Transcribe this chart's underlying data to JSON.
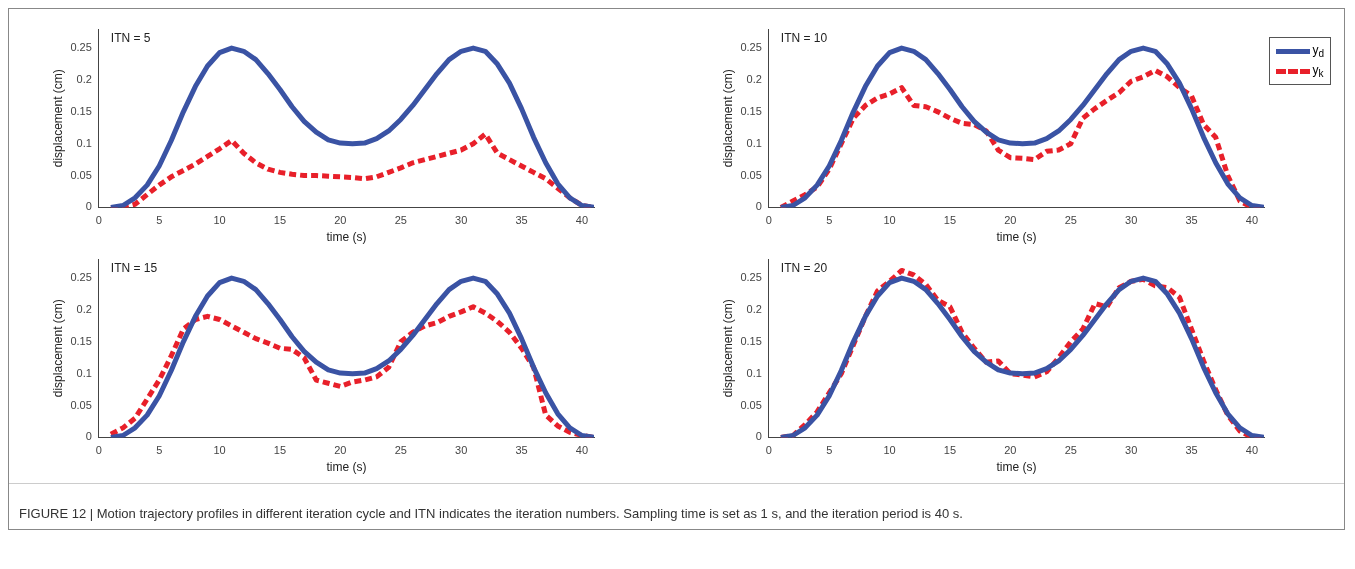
{
  "chart_data": [
    {
      "type": "line",
      "title": "ITN = 5",
      "xlabel": "time (s)",
      "ylabel": "displacement (cm)",
      "x": [
        1,
        2,
        3,
        4,
        5,
        6,
        7,
        8,
        9,
        10,
        11,
        12,
        13,
        14,
        15,
        16,
        17,
        18,
        19,
        20,
        21,
        22,
        23,
        24,
        25,
        26,
        27,
        28,
        29,
        30,
        31,
        32,
        33,
        34,
        35,
        36,
        37,
        38,
        39,
        40,
        41
      ],
      "xlim": [
        0,
        41
      ],
      "xticks": [
        0,
        5,
        10,
        15,
        20,
        25,
        30,
        35,
        40
      ],
      "ylim": [
        0,
        0.28
      ],
      "yticks": [
        0,
        0.05,
        0.1,
        0.15,
        0.2,
        0.25
      ],
      "grid": false,
      "legend": false,
      "marker": "none",
      "series": [
        {
          "color": "#3a53a4",
          "line_style": "solid",
          "values": [
            0,
            0.003,
            0.015,
            0.035,
            0.065,
            0.105,
            0.15,
            0.19,
            0.222,
            0.243,
            0.25,
            0.245,
            0.232,
            0.21,
            0.185,
            0.158,
            0.135,
            0.118,
            0.106,
            0.101,
            0.1,
            0.101,
            0.108,
            0.12,
            0.138,
            0.16,
            0.185,
            0.21,
            0.232,
            0.245,
            0.25,
            0.245,
            0.225,
            0.195,
            0.155,
            0.11,
            0.07,
            0.037,
            0.015,
            0.003,
            0
          ]
        },
        {
          "color": "#e8202a",
          "line_style": "dashed",
          "values": [
            0,
            0,
            0.005,
            0.02,
            0.035,
            0.048,
            0.058,
            0.068,
            0.08,
            0.092,
            0.105,
            0.085,
            0.07,
            0.06,
            0.055,
            0.052,
            0.05,
            0.05,
            0.049,
            0.048,
            0.047,
            0.045,
            0.048,
            0.055,
            0.062,
            0.07,
            0.075,
            0.08,
            0.085,
            0.09,
            0.1,
            0.115,
            0.085,
            0.075,
            0.065,
            0.055,
            0.045,
            0.03,
            0.015,
            0.003,
            0
          ]
        }
      ]
    },
    {
      "type": "line",
      "title": "ITN = 10",
      "xlabel": "time (s)",
      "ylabel": "displacement (cm)",
      "x": [
        1,
        2,
        3,
        4,
        5,
        6,
        7,
        8,
        9,
        10,
        11,
        12,
        13,
        14,
        15,
        16,
        17,
        18,
        19,
        20,
        21,
        22,
        23,
        24,
        25,
        26,
        27,
        28,
        29,
        30,
        31,
        32,
        33,
        34,
        35,
        36,
        37,
        38,
        39,
        40,
        41
      ],
      "xlim": [
        0,
        41
      ],
      "xticks": [
        0,
        5,
        10,
        15,
        20,
        25,
        30,
        35,
        40
      ],
      "ylim": [
        0,
        0.28
      ],
      "yticks": [
        0,
        0.05,
        0.1,
        0.15,
        0.2,
        0.25
      ],
      "grid": false,
      "legend": "top right",
      "marker": "none",
      "series": [
        {
          "name": "y$_{d}$",
          "color": "#3a53a4",
          "line_style": "solid",
          "values": [
            0,
            0.003,
            0.015,
            0.035,
            0.065,
            0.105,
            0.15,
            0.19,
            0.222,
            0.243,
            0.25,
            0.245,
            0.232,
            0.21,
            0.185,
            0.158,
            0.135,
            0.118,
            0.106,
            0.101,
            0.1,
            0.101,
            0.108,
            0.12,
            0.138,
            0.16,
            0.185,
            0.21,
            0.232,
            0.245,
            0.25,
            0.245,
            0.225,
            0.195,
            0.155,
            0.11,
            0.07,
            0.037,
            0.015,
            0.003,
            0
          ]
        },
        {
          "name": "y$_{k}$",
          "color": "#e8202a",
          "line_style": "dashed",
          "values": [
            0,
            0.01,
            0.02,
            0.032,
            0.06,
            0.1,
            0.14,
            0.16,
            0.172,
            0.178,
            0.188,
            0.16,
            0.158,
            0.15,
            0.14,
            0.132,
            0.13,
            0.12,
            0.09,
            0.078,
            0.077,
            0.075,
            0.088,
            0.09,
            0.1,
            0.14,
            0.155,
            0.168,
            0.18,
            0.198,
            0.205,
            0.215,
            0.205,
            0.188,
            0.175,
            0.13,
            0.11,
            0.05,
            0.01,
            0,
            0
          ]
        }
      ]
    },
    {
      "type": "line",
      "title": "ITN = 15",
      "xlabel": "time (s)",
      "ylabel": "displacement (cm)",
      "x": [
        1,
        2,
        3,
        4,
        5,
        6,
        7,
        8,
        9,
        10,
        11,
        12,
        13,
        14,
        15,
        16,
        17,
        18,
        19,
        20,
        21,
        22,
        23,
        24,
        25,
        26,
        27,
        28,
        29,
        30,
        31,
        32,
        33,
        34,
        35,
        36,
        37,
        38,
        39,
        40,
        41
      ],
      "xlim": [
        0,
        41
      ],
      "xticks": [
        0,
        5,
        10,
        15,
        20,
        25,
        30,
        35,
        40
      ],
      "ylim": [
        0,
        0.28
      ],
      "yticks": [
        0,
        0.05,
        0.1,
        0.15,
        0.2,
        0.25
      ],
      "grid": false,
      "legend": false,
      "marker": "none",
      "series": [
        {
          "color": "#3a53a4",
          "line_style": "solid",
          "values": [
            0,
            0.003,
            0.015,
            0.035,
            0.065,
            0.105,
            0.15,
            0.19,
            0.222,
            0.243,
            0.25,
            0.245,
            0.232,
            0.21,
            0.185,
            0.158,
            0.135,
            0.118,
            0.106,
            0.101,
            0.1,
            0.101,
            0.108,
            0.12,
            0.138,
            0.16,
            0.185,
            0.21,
            0.232,
            0.245,
            0.25,
            0.245,
            0.225,
            0.195,
            0.155,
            0.11,
            0.07,
            0.037,
            0.015,
            0.003,
            0
          ]
        },
        {
          "color": "#e8202a",
          "line_style": "dashed",
          "values": [
            0.005,
            0.015,
            0.03,
            0.06,
            0.09,
            0.128,
            0.17,
            0.185,
            0.19,
            0.185,
            0.175,
            0.165,
            0.155,
            0.148,
            0.14,
            0.138,
            0.125,
            0.09,
            0.085,
            0.08,
            0.087,
            0.09,
            0.095,
            0.11,
            0.15,
            0.165,
            0.175,
            0.18,
            0.19,
            0.197,
            0.205,
            0.195,
            0.182,
            0.165,
            0.14,
            0.11,
            0.035,
            0.018,
            0.008,
            0.003,
            0
          ]
        }
      ]
    },
    {
      "type": "line",
      "title": "ITN = 20",
      "xlabel": "time (s)",
      "ylabel": "displacement (cm)",
      "x": [
        1,
        2,
        3,
        4,
        5,
        6,
        7,
        8,
        9,
        10,
        11,
        12,
        13,
        14,
        15,
        16,
        17,
        18,
        19,
        20,
        21,
        22,
        23,
        24,
        25,
        26,
        27,
        28,
        29,
        30,
        31,
        32,
        33,
        34,
        35,
        36,
        37,
        38,
        39,
        40,
        41
      ],
      "xlim": [
        0,
        41
      ],
      "xticks": [
        0,
        5,
        10,
        15,
        20,
        25,
        30,
        35,
        40
      ],
      "ylim": [
        0,
        0.28
      ],
      "yticks": [
        0,
        0.05,
        0.1,
        0.15,
        0.2,
        0.25
      ],
      "grid": false,
      "legend": false,
      "marker": "none",
      "annotations": [
        "FIGURE 12 | Motion trajectory profiles in different iteration cycle and ITN indicates the iteration numbers. Sampling time is set as 1 s, and the iteration period is 40 s."
      ],
      "series": [
        {
          "color": "#3a53a4",
          "line_style": "solid",
          "values": [
            0,
            0.003,
            0.015,
            0.035,
            0.065,
            0.105,
            0.15,
            0.19,
            0.222,
            0.243,
            0.25,
            0.245,
            0.232,
            0.21,
            0.185,
            0.158,
            0.135,
            0.118,
            0.106,
            0.101,
            0.1,
            0.101,
            0.108,
            0.12,
            0.138,
            0.16,
            0.185,
            0.21,
            0.232,
            0.245,
            0.25,
            0.245,
            0.225,
            0.195,
            0.155,
            0.11,
            0.07,
            0.037,
            0.015,
            0.003,
            0
          ]
        },
        {
          "color": "#e8202a",
          "line_style": "dashed",
          "values": [
            0,
            0.003,
            0.02,
            0.04,
            0.07,
            0.1,
            0.145,
            0.19,
            0.23,
            0.245,
            0.262,
            0.255,
            0.24,
            0.215,
            0.205,
            0.165,
            0.14,
            0.118,
            0.12,
            0.1,
            0.098,
            0.095,
            0.103,
            0.125,
            0.15,
            0.17,
            0.21,
            0.205,
            0.235,
            0.245,
            0.248,
            0.238,
            0.235,
            0.22,
            0.17,
            0.12,
            0.075,
            0.035,
            0.01,
            0,
            0
          ]
        }
      ]
    }
  ]
}
